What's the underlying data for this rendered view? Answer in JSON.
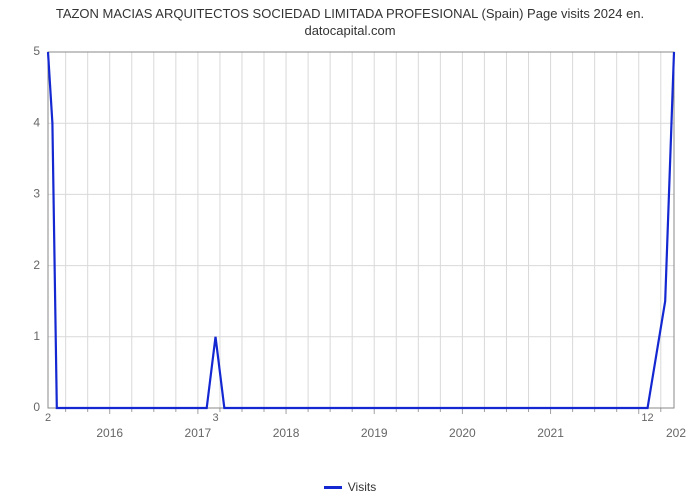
{
  "chart": {
    "type": "line",
    "title_line1": "TAZON MACIAS ARQUITECTOS SOCIEDAD LIMITADA PROFESIONAL (Spain) Page visits 2024 en.",
    "title_line2": "datocapital.com",
    "background_color": "#ffffff",
    "plot_border_color": "#888888",
    "grid_color": "#d9d9d9",
    "axis_line_color": "#a0a0a0",
    "line_color": "#1428d2",
    "line_width": 2.2,
    "x_axis": {
      "domain_min": 2015.3,
      "domain_max": 2022.4,
      "ticks": [
        2016,
        2017,
        2018,
        2019,
        2020,
        2021
      ],
      "end_labels": {
        "left": "2",
        "right_a": "12",
        "right_b": "202"
      },
      "left_end_x": 2015.3,
      "right_a_x": 2022.1,
      "right_b_x": 2022.4,
      "minor_divisions": 4
    },
    "y_axis": {
      "domain_min": 0,
      "domain_max": 5,
      "ticks": [
        0,
        1,
        2,
        3,
        4,
        5
      ]
    },
    "series": {
      "name": "Visits",
      "points": [
        [
          2015.3,
          5.0
        ],
        [
          2015.35,
          4.0
        ],
        [
          2015.4,
          0.0
        ],
        [
          2017.1,
          0.0
        ],
        [
          2017.2,
          1.0
        ],
        [
          2017.3,
          0.0
        ],
        [
          2022.1,
          0.0
        ],
        [
          2022.3,
          1.5
        ],
        [
          2022.4,
          5.0
        ]
      ]
    },
    "x_end_midlabel_left": "2",
    "x_end_midlabel_right": "3",
    "legend": {
      "label": "Visits"
    },
    "title_fontsize": 13,
    "tick_fontsize": 12
  }
}
